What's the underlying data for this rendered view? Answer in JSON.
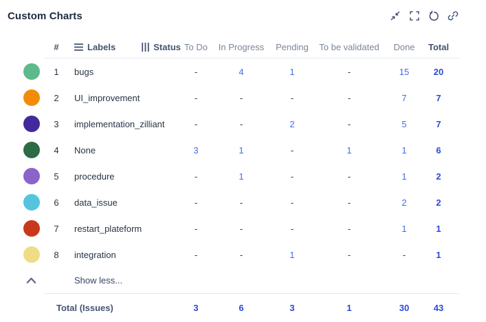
{
  "title": "Custom Charts",
  "toolbar": {
    "icons": [
      "collapse-icon",
      "fullscreen-icon",
      "refresh-icon",
      "link-icon"
    ]
  },
  "table": {
    "headers": {
      "num": "#",
      "labels": "Labels",
      "status": "Status",
      "statuses": [
        "To Do",
        "In Progress",
        "Pending",
        "To be validated",
        "Done"
      ],
      "total": "Total"
    },
    "rows": [
      {
        "color": "#5eba8a",
        "num": "1",
        "label": "bugs",
        "values": [
          "-",
          "4",
          "1",
          "-",
          "15"
        ],
        "total": "20"
      },
      {
        "color": "#f18c0b",
        "num": "2",
        "label": "UI_improvement",
        "values": [
          "-",
          "-",
          "-",
          "-",
          "7"
        ],
        "total": "7"
      },
      {
        "color": "#432a9c",
        "num": "3",
        "label": "implementation_zilliant",
        "values": [
          "-",
          "-",
          "2",
          "-",
          "5"
        ],
        "total": "7"
      },
      {
        "color": "#2c6b45",
        "num": "4",
        "label": "None",
        "values": [
          "3",
          "1",
          "-",
          "1",
          "1"
        ],
        "total": "6"
      },
      {
        "color": "#8b64c9",
        "num": "5",
        "label": "procedure",
        "values": [
          "-",
          "1",
          "-",
          "-",
          "1"
        ],
        "total": "2"
      },
      {
        "color": "#55c4de",
        "num": "6",
        "label": "data_issue",
        "values": [
          "-",
          "-",
          "-",
          "-",
          "2"
        ],
        "total": "2"
      },
      {
        "color": "#c8391b",
        "num": "7",
        "label": "restart_plateform",
        "values": [
          "-",
          "-",
          "-",
          "-",
          "1"
        ],
        "total": "1"
      },
      {
        "color": "#eedd84",
        "num": "8",
        "label": "integration",
        "values": [
          "-",
          "-",
          "1",
          "-",
          "-"
        ],
        "total": "1"
      }
    ],
    "show_less": "Show less...",
    "footer": {
      "label": "Total (Issues)",
      "values": [
        "3",
        "6",
        "3",
        "1",
        "30"
      ],
      "total": "43"
    }
  },
  "colors": {
    "value_blue": "#3e6de4",
    "total_blue": "#2b49d8",
    "header_dark": "#44546f",
    "header_gray": "#7a8699",
    "text_dark": "#263445",
    "divider": "#e7e9ec",
    "icon": "#44546f"
  }
}
